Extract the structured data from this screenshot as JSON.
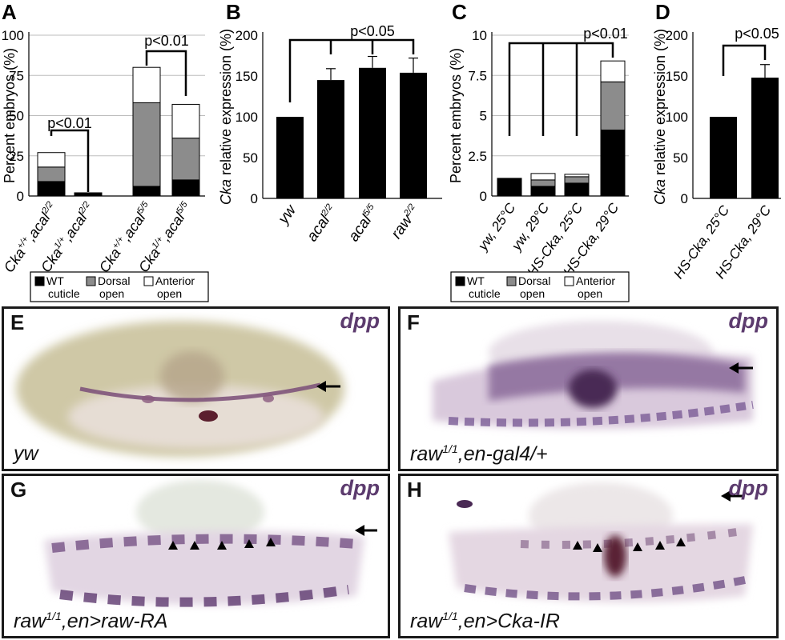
{
  "chart_data": [
    {
      "panel": "A",
      "type": "bar",
      "stacked": true,
      "ylabel": "Percent embryos (%)",
      "ylim": [
        0,
        100
      ],
      "yticks": [
        "0",
        "25",
        "50",
        "75",
        "100"
      ],
      "grid": true,
      "categories": [
        {
          "main": "Cka",
          "sup1": "+/+",
          "mid": ",acal",
          "sup2": "2/2"
        },
        {
          "main": "Cka",
          "sup1": "1/+",
          "mid": ",acal",
          "sup2": "2/2"
        },
        {
          "main": "Cka",
          "sup1": "+/+",
          "mid": ",acal",
          "sup2": "5/5"
        },
        {
          "main": "Cka",
          "sup1": "1/+",
          "mid": ",acal",
          "sup2": "5/5"
        }
      ],
      "series": [
        {
          "name": "WT cuticle",
          "color": "#000000",
          "values": [
            9,
            2,
            6,
            10
          ]
        },
        {
          "name": "Dorsal open",
          "color": "#8c8c8c",
          "values": [
            9,
            0,
            52,
            26
          ]
        },
        {
          "name": "Anterior open",
          "color": "#ffffff",
          "values": [
            9,
            0,
            22,
            21
          ]
        }
      ],
      "comparisons": [
        {
          "from": 0,
          "to": 1,
          "label": "p<0.01"
        },
        {
          "from": 2,
          "to": 3,
          "label": "p<0.01"
        }
      ],
      "legend": [
        {
          "line1": "WT",
          "line2": "cuticle",
          "color": "#000000"
        },
        {
          "line1": "Dorsal",
          "line2": "open",
          "color": "#8c8c8c"
        },
        {
          "line1": "Anterior",
          "line2": "open",
          "color": "#ffffff"
        }
      ]
    },
    {
      "panel": "B",
      "type": "bar",
      "ylabel_italic": "Cka",
      "ylabel_rest": " relative expression (%)",
      "ylim": [
        0,
        200
      ],
      "yticks": [
        "0",
        "50",
        "100",
        "150",
        "200"
      ],
      "grid": false,
      "categories": [
        {
          "main": "yw",
          "sup": ""
        },
        {
          "main": "acal",
          "sup": "2/2"
        },
        {
          "main": "acal",
          "sup": "5/5"
        },
        {
          "main": "raw",
          "sup": "2/2"
        }
      ],
      "values": [
        100,
        145,
        160,
        154
      ],
      "errors": [
        0,
        14,
        14,
        18
      ],
      "comparison_label": "p<0.05"
    },
    {
      "panel": "C",
      "type": "bar",
      "stacked": true,
      "ylabel": "Percent embryos (%)",
      "ylim": [
        0,
        10
      ],
      "yticks": [
        "0",
        "2.5",
        "5",
        "7.5",
        "10"
      ],
      "grid": true,
      "categories": [
        "yw, 25°C",
        "yw, 29°C",
        "HS-Cka, 25°C",
        "HS-Cka, 29°C"
      ],
      "series": [
        {
          "name": "WT cuticle",
          "color": "#000000",
          "values": [
            1.1,
            0.6,
            0.8,
            4.1
          ]
        },
        {
          "name": "Dorsal open",
          "color": "#8c8c8c",
          "values": [
            0,
            0.4,
            0.4,
            3.0
          ]
        },
        {
          "name": "Anterior open",
          "color": "#ffffff",
          "values": [
            0,
            0.4,
            0.15,
            1.3
          ]
        }
      ],
      "comparison_label": "p<0.01",
      "legend": [
        {
          "line1": "WT",
          "line2": "cuticle",
          "color": "#000000"
        },
        {
          "line1": "Dorsal",
          "line2": "open",
          "color": "#8c8c8c"
        },
        {
          "line1": "Anterior",
          "line2": "open",
          "color": "#ffffff"
        }
      ]
    },
    {
      "panel": "D",
      "type": "bar",
      "ylabel_italic": "Cka",
      "ylabel_rest": " relative expression (%)",
      "ylim": [
        0,
        200
      ],
      "yticks": [
        "0",
        "50",
        "100",
        "150",
        "200"
      ],
      "grid": false,
      "categories": [
        "HS-Cka, 25°C",
        "HS-Cka, 29°C"
      ],
      "values": [
        100,
        148
      ],
      "errors": [
        0,
        16
      ],
      "comparison_label": "p<0.05"
    }
  ],
  "images": [
    {
      "letter": "E",
      "gene": "dpp",
      "geno_main": "yw",
      "geno_sup": "",
      "geno_rest": ""
    },
    {
      "letter": "F",
      "gene": "dpp",
      "geno_main": "raw",
      "geno_sup": "1/1",
      "geno_rest": ",en-gal4/+"
    },
    {
      "letter": "G",
      "gene": "dpp",
      "geno_main": "raw",
      "geno_sup": "1/1",
      "geno_rest": ",en>raw-RA"
    },
    {
      "letter": "H",
      "gene": "dpp",
      "geno_main": "raw",
      "geno_sup": "1/1",
      "geno_rest": ",en>Cka-IR"
    }
  ]
}
